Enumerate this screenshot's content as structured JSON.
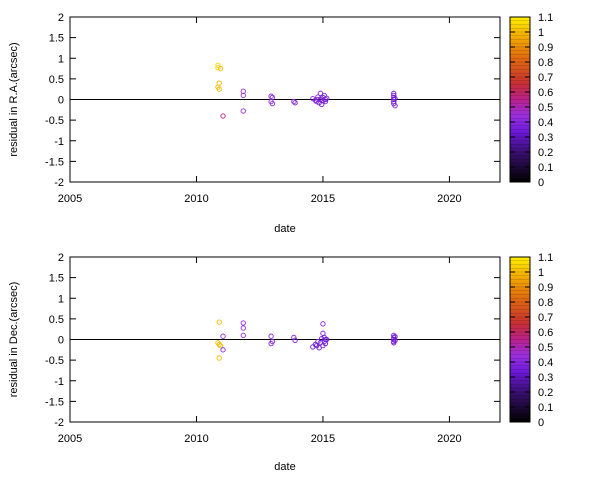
{
  "chart_data": [
    {
      "type": "scatter",
      "xlabel": "date",
      "ylabel": "residual in R.A.(arcsec)",
      "xlim": [
        2005,
        2022
      ],
      "ylim": [
        -2,
        2
      ],
      "xticks": [
        2005,
        2010,
        2015,
        2020
      ],
      "yticks": [
        -2,
        -1.5,
        -1,
        -0.5,
        0,
        0.5,
        1,
        1.5,
        2
      ],
      "zero_line": true,
      "colorbar": {
        "range": [
          0,
          1.1
        ],
        "ticks": [
          "0",
          "0.1",
          "0.2",
          "0.3",
          "0.4",
          "0.5",
          "0.6",
          "0.7",
          "0.8",
          "0.9",
          "1",
          "1.1"
        ],
        "placement": "right"
      },
      "points": [
        {
          "x": 2010.85,
          "y": 0.83,
          "c": 1.05
        },
        {
          "x": 2010.85,
          "y": 0.77,
          "c": 1.05
        },
        {
          "x": 2010.95,
          "y": 0.75,
          "c": 1.0
        },
        {
          "x": 2010.9,
          "y": 0.4,
          "c": 1.0
        },
        {
          "x": 2010.85,
          "y": 0.3,
          "c": 1.0
        },
        {
          "x": 2010.9,
          "y": 0.25,
          "c": 1.0
        },
        {
          "x": 2011.05,
          "y": -0.4,
          "c": 0.55
        },
        {
          "x": 2011.85,
          "y": 0.2,
          "c": 0.45
        },
        {
          "x": 2011.85,
          "y": 0.1,
          "c": 0.45
        },
        {
          "x": 2011.85,
          "y": -0.28,
          "c": 0.45
        },
        {
          "x": 2012.95,
          "y": 0.08,
          "c": 0.4
        },
        {
          "x": 2013.0,
          "y": 0.05,
          "c": 0.4
        },
        {
          "x": 2012.95,
          "y": -0.05,
          "c": 0.4
        },
        {
          "x": 2013.0,
          "y": -0.1,
          "c": 0.4
        },
        {
          "x": 2013.85,
          "y": -0.05,
          "c": 0.4
        },
        {
          "x": 2013.9,
          "y": -0.08,
          "c": 0.38
        },
        {
          "x": 2014.6,
          "y": 0.02,
          "c": 0.4
        },
        {
          "x": 2014.7,
          "y": -0.02,
          "c": 0.4
        },
        {
          "x": 2014.75,
          "y": -0.05,
          "c": 0.38
        },
        {
          "x": 2014.8,
          "y": 0.06,
          "c": 0.38
        },
        {
          "x": 2014.85,
          "y": -0.08,
          "c": 0.38
        },
        {
          "x": 2014.9,
          "y": 0.15,
          "c": 0.4
        },
        {
          "x": 2014.9,
          "y": 0.0,
          "c": 0.35
        },
        {
          "x": 2014.95,
          "y": -0.12,
          "c": 0.35
        },
        {
          "x": 2015.0,
          "y": 0.05,
          "c": 0.35
        },
        {
          "x": 2015.0,
          "y": -0.03,
          "c": 0.35
        },
        {
          "x": 2015.05,
          "y": 0.1,
          "c": 0.35
        },
        {
          "x": 2015.1,
          "y": 0.0,
          "c": 0.35
        },
        {
          "x": 2015.1,
          "y": -0.05,
          "c": 0.35
        },
        {
          "x": 2015.15,
          "y": 0.03,
          "c": 0.35
        },
        {
          "x": 2014.8,
          "y": 0.0,
          "c": 0.38
        },
        {
          "x": 2017.8,
          "y": 0.15,
          "c": 0.35
        },
        {
          "x": 2017.8,
          "y": 0.1,
          "c": 0.35
        },
        {
          "x": 2017.8,
          "y": 0.05,
          "c": 0.35
        },
        {
          "x": 2017.8,
          "y": 0.0,
          "c": 0.35
        },
        {
          "x": 2017.8,
          "y": -0.05,
          "c": 0.35
        },
        {
          "x": 2017.8,
          "y": -0.1,
          "c": 0.35
        },
        {
          "x": 2017.85,
          "y": -0.15,
          "c": 0.35
        },
        {
          "x": 2017.85,
          "y": 0.02,
          "c": 0.35
        }
      ]
    },
    {
      "type": "scatter",
      "xlabel": "date",
      "ylabel": "residual in Dec.(arcsec)",
      "xlim": [
        2005,
        2022
      ],
      "ylim": [
        -2,
        2
      ],
      "xticks": [
        2005,
        2010,
        2015,
        2020
      ],
      "yticks": [
        -2,
        -1.5,
        -1,
        -0.5,
        0,
        0.5,
        1,
        1.5,
        2
      ],
      "zero_line": true,
      "colorbar": {
        "range": [
          0,
          1.1
        ],
        "ticks": [
          "0",
          "0.1",
          "0.2",
          "0.3",
          "0.4",
          "0.5",
          "0.6",
          "0.7",
          "0.8",
          "0.9",
          "1",
          "1.1"
        ],
        "placement": "right"
      },
      "points": [
        {
          "x": 2010.9,
          "y": 0.42,
          "c": 1.0
        },
        {
          "x": 2010.85,
          "y": -0.08,
          "c": 1.0
        },
        {
          "x": 2010.9,
          "y": -0.12,
          "c": 1.0
        },
        {
          "x": 2010.95,
          "y": -0.15,
          "c": 1.0
        },
        {
          "x": 2010.9,
          "y": -0.45,
          "c": 1.0
        },
        {
          "x": 2011.05,
          "y": 0.08,
          "c": 0.45
        },
        {
          "x": 2011.05,
          "y": -0.25,
          "c": 0.42
        },
        {
          "x": 2011.85,
          "y": 0.4,
          "c": 0.45
        },
        {
          "x": 2011.85,
          "y": 0.28,
          "c": 0.45
        },
        {
          "x": 2011.85,
          "y": 0.1,
          "c": 0.45
        },
        {
          "x": 2012.95,
          "y": 0.08,
          "c": 0.4
        },
        {
          "x": 2013.0,
          "y": -0.05,
          "c": 0.4
        },
        {
          "x": 2012.95,
          "y": -0.1,
          "c": 0.4
        },
        {
          "x": 2013.85,
          "y": 0.05,
          "c": 0.4
        },
        {
          "x": 2013.9,
          "y": -0.02,
          "c": 0.38
        },
        {
          "x": 2014.6,
          "y": -0.18,
          "c": 0.35
        },
        {
          "x": 2014.7,
          "y": -0.12,
          "c": 0.35
        },
        {
          "x": 2014.75,
          "y": -0.15,
          "c": 0.35
        },
        {
          "x": 2014.8,
          "y": -0.05,
          "c": 0.35
        },
        {
          "x": 2014.85,
          "y": -0.2,
          "c": 0.35
        },
        {
          "x": 2014.9,
          "y": -0.08,
          "c": 0.35
        },
        {
          "x": 2014.95,
          "y": 0.02,
          "c": 0.35
        },
        {
          "x": 2015.0,
          "y": 0.38,
          "c": 0.4
        },
        {
          "x": 2015.0,
          "y": 0.15,
          "c": 0.38
        },
        {
          "x": 2015.05,
          "y": 0.05,
          "c": 0.35
        },
        {
          "x": 2015.05,
          "y": -0.05,
          "c": 0.35
        },
        {
          "x": 2015.1,
          "y": 0.0,
          "c": 0.35
        },
        {
          "x": 2015.1,
          "y": -0.1,
          "c": 0.35
        },
        {
          "x": 2015.15,
          "y": 0.0,
          "c": 0.35
        },
        {
          "x": 2015.0,
          "y": -0.15,
          "c": 0.35
        },
        {
          "x": 2017.8,
          "y": 0.1,
          "c": 0.35
        },
        {
          "x": 2017.8,
          "y": 0.05,
          "c": 0.35
        },
        {
          "x": 2017.8,
          "y": 0.0,
          "c": 0.35
        },
        {
          "x": 2017.8,
          "y": -0.05,
          "c": 0.35
        },
        {
          "x": 2017.8,
          "y": -0.08,
          "c": 0.35
        },
        {
          "x": 2017.85,
          "y": 0.07,
          "c": 0.35
        },
        {
          "x": 2017.85,
          "y": -0.02,
          "c": 0.35
        }
      ]
    }
  ]
}
